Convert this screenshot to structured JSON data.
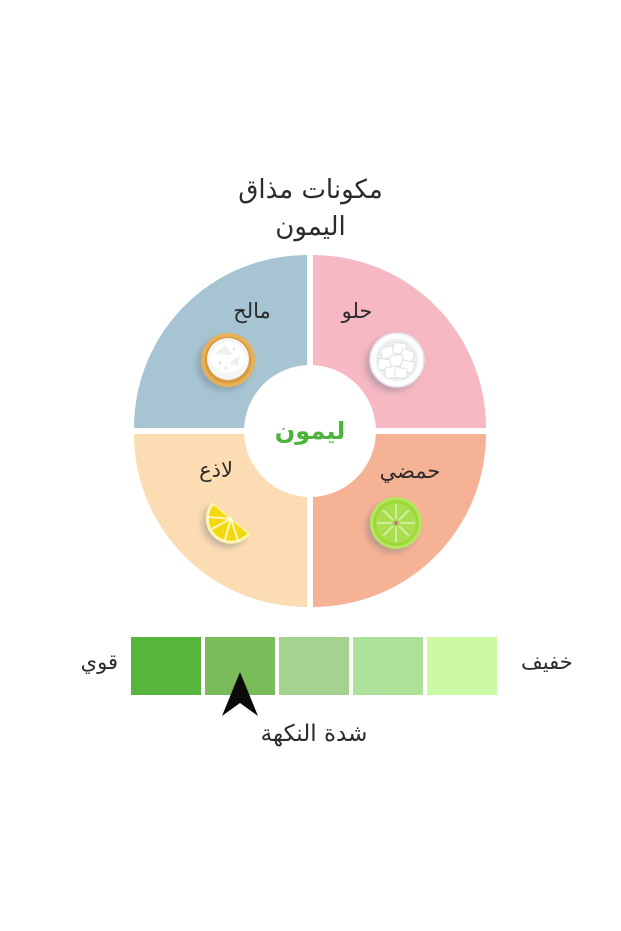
{
  "title": {
    "line1": "مكونات مذاق",
    "line2": "اليمون"
  },
  "donut": {
    "center_label": "ليمون",
    "center_label_color": "#4cb43b",
    "quadrants": [
      {
        "id": "salty",
        "label": "مالح",
        "color": "#a6c4d1",
        "icon": "salt-bowl"
      },
      {
        "id": "sweet",
        "label": "حلو",
        "color": "#f6b9c3",
        "icon": "sugar-cubes-bowl"
      },
      {
        "id": "pungent",
        "label": "لاذع",
        "color": "#fcdcb2",
        "icon": "lemon-wedge"
      },
      {
        "id": "sour",
        "label": "حمضي",
        "color": "#f6b295",
        "icon": "lime-slice"
      }
    ]
  },
  "intensity_scale": {
    "caption": "شدة النكهة",
    "strong_label": "قوي",
    "light_label": "خفيف",
    "levels": [
      "#57b43d",
      "#7abc5a",
      "#a5d28e",
      "#ade19a",
      "#cbf9a4"
    ],
    "selected_level_index": 1,
    "marker_color": "#0b0b0b"
  }
}
